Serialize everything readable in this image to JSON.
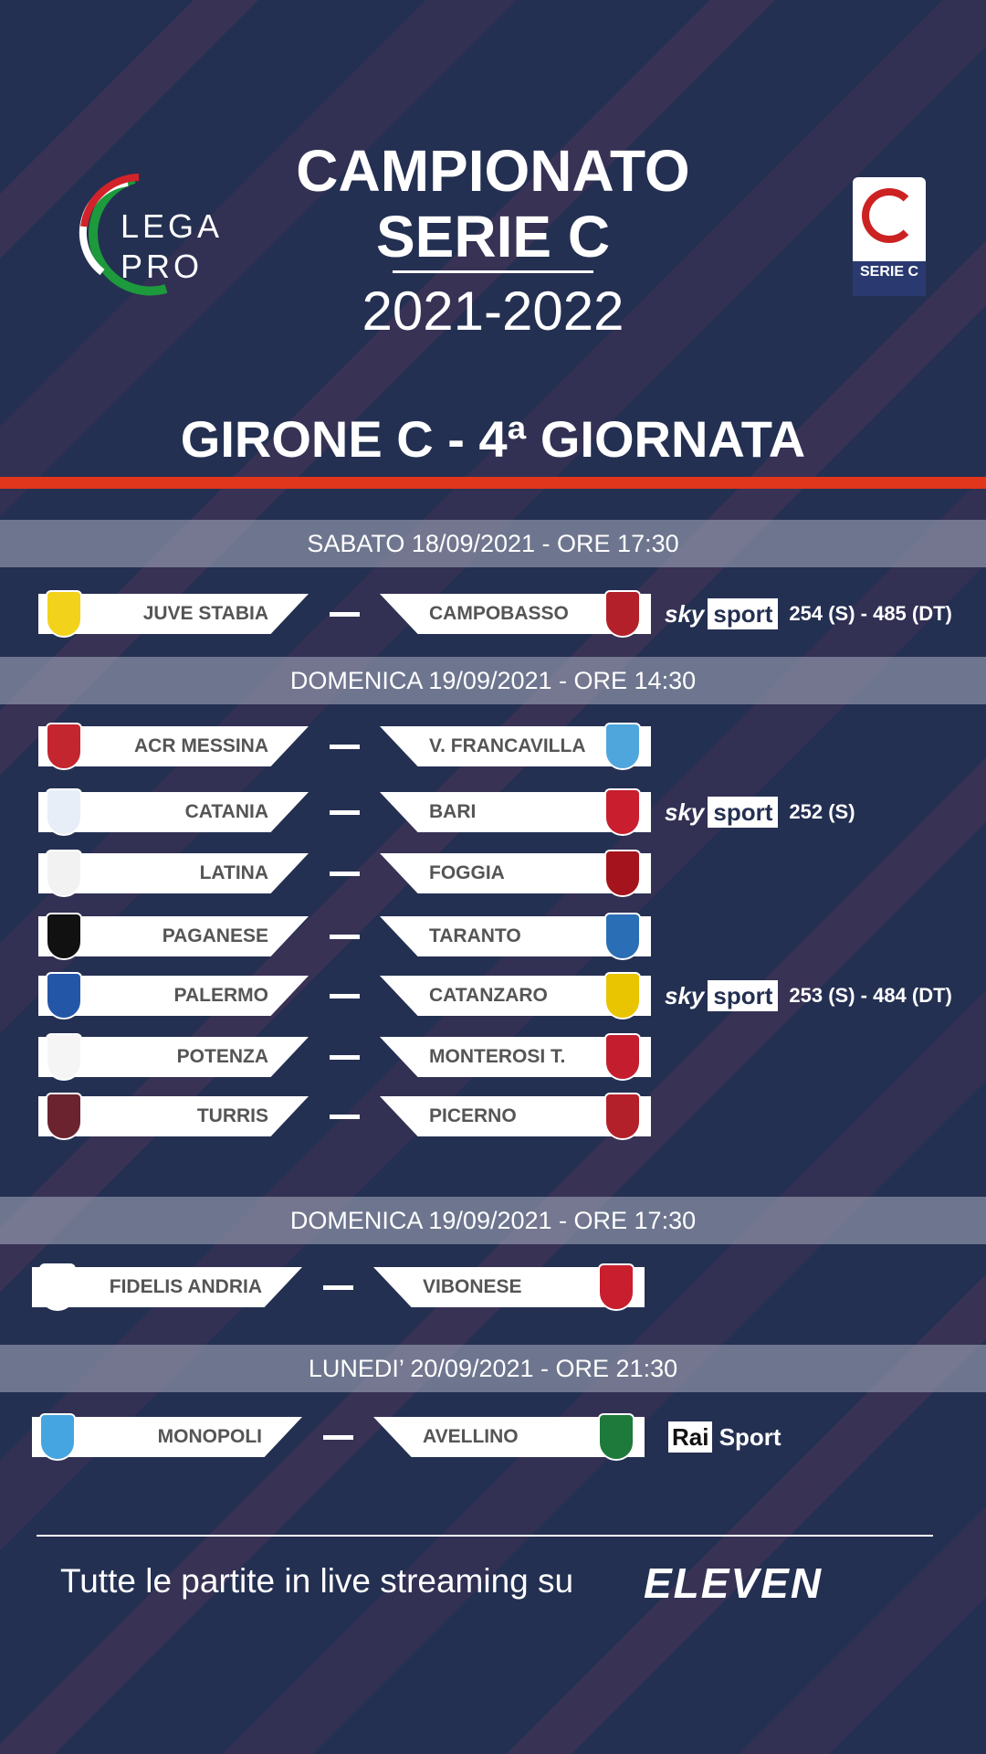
{
  "header": {
    "title_line1": "CAMPIONATO",
    "title_line2": "SERIE C",
    "season": "2021-2022",
    "round": "GIRONE C - 4ª GIORNATA"
  },
  "logos": {
    "left": "LEGA PRO",
    "right": "SERIE C"
  },
  "groups": [
    {
      "date": "SABATO 18/09/2021 - ORE 17:30",
      "matches": [
        {
          "home": "JUVE STABIA",
          "away": "CAMPOBASSO",
          "tv": "sky sport",
          "channel": "254 (S) - 485 (DT)"
        }
      ]
    },
    {
      "date": "DOMENICA 19/09/2021 - ORE 14:30",
      "matches": [
        {
          "home": "ACR MESSINA",
          "away": "V. FRANCAVILLA"
        },
        {
          "home": "CATANIA",
          "away": "BARI",
          "tv": "sky sport",
          "channel": "252 (S)"
        },
        {
          "home": "LATINA",
          "away": "FOGGIA"
        },
        {
          "home": "PAGANESE",
          "away": "TARANTO"
        },
        {
          "home": "PALERMO",
          "away": "CATANZARO",
          "tv": "sky sport",
          "channel": "253 (S) - 484 (DT)"
        },
        {
          "home": "POTENZA",
          "away": "MONTEROSI T."
        },
        {
          "home": "TURRIS",
          "away": "PICERNO"
        }
      ]
    },
    {
      "date": "DOMENICA 19/09/2021 - ORE 17:30",
      "matches": [
        {
          "home": "FIDELIS ANDRIA",
          "away": "VIBONESE"
        }
      ]
    },
    {
      "date": "LUNEDI’ 20/09/2021 - ORE 21:30",
      "matches": [
        {
          "home": "MONOPOLI",
          "away": "AVELLINO",
          "tv": "Rai Sport"
        }
      ]
    }
  ],
  "footer": {
    "text": "Tutte le partite in live streaming su",
    "brand": "ELEVEN"
  },
  "colors": {
    "background": "#243052",
    "accent": "#e2361c"
  }
}
